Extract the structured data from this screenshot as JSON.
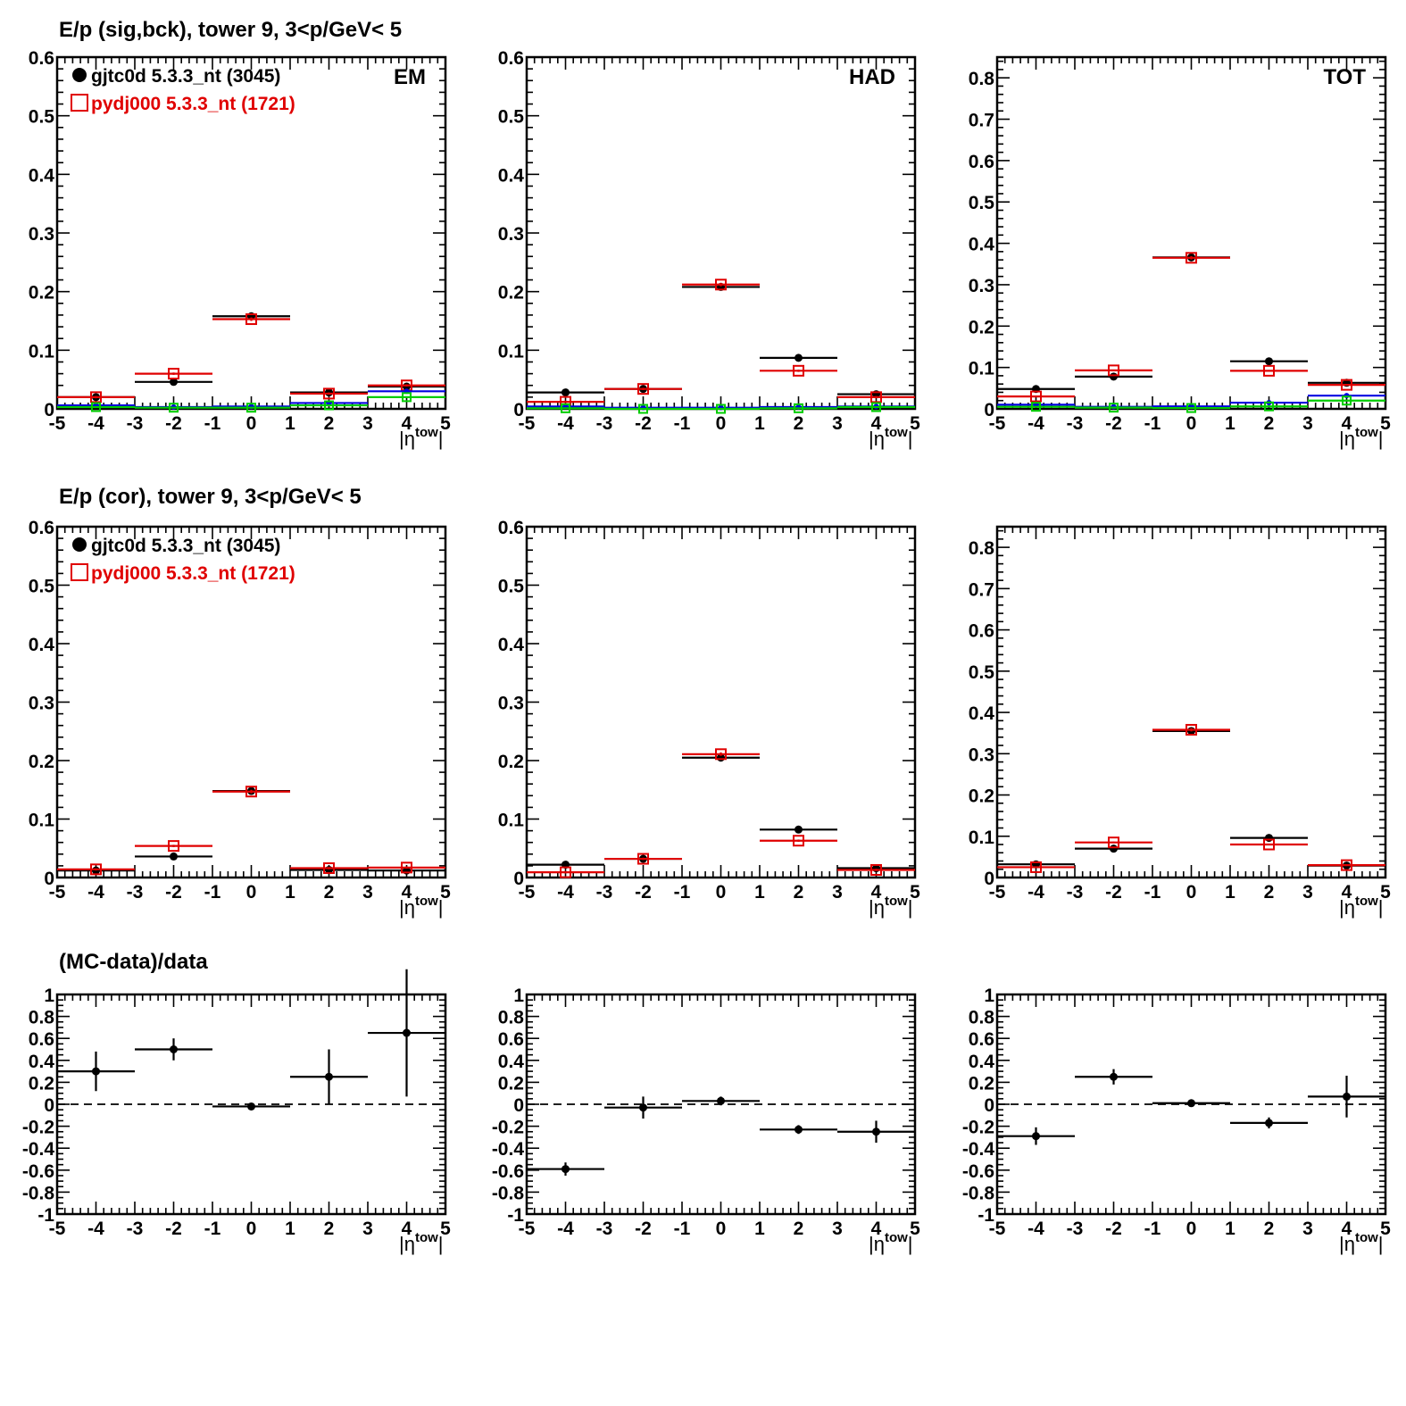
{
  "row_titles": [
    "E/p (sig,bck), tower 9,  3<p/GeV< 5",
    "E/p (cor), tower 9,  3<p/GeV< 5",
    "(MC-data)/data"
  ],
  "legend": {
    "data_label": "gjtc0d 5.3.3_nt (3045)",
    "mc_label": "pydj000 5.3.3_nt (1721)"
  },
  "colors": {
    "data": "#000000",
    "mc": "#e00000",
    "blue": "#0000e0",
    "green": "#00cc00"
  },
  "chart_data": [
    {
      "id": "sigbck-em",
      "type": "scatter",
      "label": "EM",
      "xlabel": "|η^tow|",
      "xlim": [
        -5,
        5
      ],
      "ylim": [
        0,
        0.6
      ],
      "xticks": [
        -5,
        -4,
        -3,
        -2,
        -1,
        0,
        1,
        2,
        3,
        4,
        5
      ],
      "yticks": [
        0,
        0.1,
        0.2,
        0.3,
        0.4,
        0.5,
        0.6
      ],
      "x": [
        -4,
        -2,
        0,
        2,
        4
      ],
      "series": [
        {
          "name": "gjtc0d 5.3.3_nt (3045)",
          "style": "data",
          "values": [
            0.02,
            0.046,
            0.158,
            0.028,
            0.038
          ],
          "errors": [
            0.002,
            0.002,
            0.003,
            0.002,
            0.002
          ]
        },
        {
          "name": "pydj000 5.3.3_nt (1721)",
          "style": "mc",
          "values": [
            0.02,
            0.06,
            0.153,
            0.026,
            0.04
          ],
          "errors": [
            0.002,
            0.002,
            0.003,
            0.002,
            0.002
          ]
        },
        {
          "style": "blue",
          "values": [
            0.006,
            0.003,
            0.004,
            0.01,
            0.03
          ]
        },
        {
          "style": "green",
          "values": [
            0.003,
            0.002,
            0.002,
            0.006,
            0.02
          ]
        }
      ]
    },
    {
      "id": "sigbck-had",
      "type": "scatter",
      "label": "HAD",
      "xlabel": "|η^tow|",
      "xlim": [
        -5,
        5
      ],
      "ylim": [
        0,
        0.6
      ],
      "xticks": [
        -5,
        -4,
        -3,
        -2,
        -1,
        0,
        1,
        2,
        3,
        4,
        5
      ],
      "yticks": [
        0,
        0.1,
        0.2,
        0.3,
        0.4,
        0.5,
        0.6
      ],
      "x": [
        -4,
        -2,
        0,
        2,
        4
      ],
      "series": [
        {
          "style": "data",
          "values": [
            0.028,
            0.034,
            0.208,
            0.087,
            0.025
          ],
          "errors": [
            0.002,
            0.002,
            0.003,
            0.002,
            0.002
          ]
        },
        {
          "style": "mc",
          "values": [
            0.012,
            0.034,
            0.212,
            0.065,
            0.02
          ],
          "errors": [
            0.002,
            0.002,
            0.003,
            0.002,
            0.002
          ]
        },
        {
          "style": "blue",
          "values": [
            0.004,
            0.002,
            0.002,
            0.003,
            0.004
          ]
        },
        {
          "style": "green",
          "values": [
            0.001,
            0.0,
            0.0,
            0.001,
            0.003
          ]
        }
      ]
    },
    {
      "id": "sigbck-tot",
      "type": "scatter",
      "label": "TOT",
      "xlabel": "|η^tow|",
      "xlim": [
        -5,
        5
      ],
      "ylim": [
        0,
        0.85
      ],
      "xticks": [
        -5,
        -4,
        -3,
        -2,
        -1,
        0,
        1,
        2,
        3,
        4,
        5
      ],
      "yticks": [
        0,
        0.1,
        0.2,
        0.3,
        0.4,
        0.5,
        0.6,
        0.7,
        0.8
      ],
      "x": [
        -4,
        -2,
        0,
        2,
        4
      ],
      "series": [
        {
          "style": "data",
          "values": [
            0.048,
            0.078,
            0.366,
            0.115,
            0.063
          ],
          "errors": [
            0.002,
            0.002,
            0.004,
            0.002,
            0.002
          ]
        },
        {
          "style": "mc",
          "values": [
            0.03,
            0.093,
            0.365,
            0.092,
            0.058
          ],
          "errors": [
            0.002,
            0.002,
            0.004,
            0.002,
            0.002
          ]
        },
        {
          "style": "blue",
          "values": [
            0.01,
            0.005,
            0.006,
            0.015,
            0.032
          ]
        },
        {
          "style": "green",
          "values": [
            0.005,
            0.003,
            0.002,
            0.006,
            0.02
          ]
        }
      ]
    },
    {
      "id": "cor-em",
      "type": "scatter",
      "xlabel": "|η^tow|",
      "xlim": [
        -5,
        5
      ],
      "ylim": [
        0,
        0.6
      ],
      "xticks": [
        -5,
        -4,
        -3,
        -2,
        -1,
        0,
        1,
        2,
        3,
        4,
        5
      ],
      "yticks": [
        0,
        0.1,
        0.2,
        0.3,
        0.4,
        0.5,
        0.6
      ],
      "x": [
        -4,
        -2,
        0,
        2,
        4
      ],
      "series": [
        {
          "name": "gjtc0d 5.3.3_nt (3045)",
          "style": "data",
          "values": [
            0.012,
            0.036,
            0.148,
            0.013,
            0.012
          ],
          "errors": [
            0.002,
            0.002,
            0.003,
            0.002,
            0.002
          ]
        },
        {
          "name": "pydj000 5.3.3_nt (1721)",
          "style": "mc",
          "values": [
            0.014,
            0.054,
            0.147,
            0.016,
            0.017
          ],
          "errors": [
            0.002,
            0.002,
            0.003,
            0.002,
            0.002
          ]
        }
      ]
    },
    {
      "id": "cor-had",
      "type": "scatter",
      "xlabel": "|η^tow|",
      "xlim": [
        -5,
        5
      ],
      "ylim": [
        0,
        0.6
      ],
      "xticks": [
        -5,
        -4,
        -3,
        -2,
        -1,
        0,
        1,
        2,
        3,
        4,
        5
      ],
      "yticks": [
        0,
        0.1,
        0.2,
        0.3,
        0.4,
        0.5,
        0.6
      ],
      "x": [
        -4,
        -2,
        0,
        2,
        4
      ],
      "series": [
        {
          "style": "data",
          "values": [
            0.022,
            0.032,
            0.205,
            0.082,
            0.016
          ],
          "errors": [
            0.002,
            0.002,
            0.003,
            0.002,
            0.002
          ]
        },
        {
          "style": "mc",
          "values": [
            0.009,
            0.032,
            0.211,
            0.063,
            0.013
          ],
          "errors": [
            0.002,
            0.002,
            0.003,
            0.002,
            0.002
          ]
        }
      ]
    },
    {
      "id": "cor-tot",
      "type": "scatter",
      "xlabel": "|η^tow|",
      "xlim": [
        -5,
        5
      ],
      "ylim": [
        0,
        0.85
      ],
      "xticks": [
        -5,
        -4,
        -3,
        -2,
        -1,
        0,
        1,
        2,
        3,
        4,
        5
      ],
      "yticks": [
        0,
        0.1,
        0.2,
        0.3,
        0.4,
        0.5,
        0.6,
        0.7,
        0.8
      ],
      "x": [
        -4,
        -2,
        0,
        2,
        4
      ],
      "series": [
        {
          "style": "data",
          "values": [
            0.032,
            0.07,
            0.355,
            0.096,
            0.029
          ],
          "errors": [
            0.002,
            0.002,
            0.004,
            0.002,
            0.002
          ]
        },
        {
          "style": "mc",
          "values": [
            0.025,
            0.085,
            0.358,
            0.08,
            0.03
          ],
          "errors": [
            0.002,
            0.002,
            0.004,
            0.002,
            0.002
          ]
        }
      ]
    },
    {
      "id": "ratio-em",
      "type": "scatter",
      "xlabel": "|η^tow|",
      "xlim": [
        -5,
        5
      ],
      "ylim": [
        -1,
        1
      ],
      "xticks": [
        -5,
        -4,
        -3,
        -2,
        -1,
        0,
        1,
        2,
        3,
        4,
        5
      ],
      "yticks": [
        -1,
        -0.8,
        -0.6,
        -0.4,
        -0.2,
        0,
        0.2,
        0.4,
        0.6,
        0.8,
        1
      ],
      "zero_line": true,
      "x": [
        -4,
        -2,
        0,
        2,
        4
      ],
      "series": [
        {
          "style": "data",
          "values": [
            0.3,
            0.5,
            -0.02,
            0.25,
            0.65
          ],
          "errors": [
            0.18,
            0.1,
            0.03,
            0.25,
            0.58
          ]
        }
      ]
    },
    {
      "id": "ratio-had",
      "type": "scatter",
      "xlabel": "|η^tow|",
      "xlim": [
        -5,
        5
      ],
      "ylim": [
        -1,
        1
      ],
      "xticks": [
        -5,
        -4,
        -3,
        -2,
        -1,
        0,
        1,
        2,
        3,
        4,
        5
      ],
      "yticks": [
        -1,
        -0.8,
        -0.6,
        -0.4,
        -0.2,
        0,
        0.2,
        0.4,
        0.6,
        0.8,
        1
      ],
      "zero_line": true,
      "x": [
        -4,
        -2,
        0,
        2,
        4
      ],
      "series": [
        {
          "style": "data",
          "values": [
            -0.59,
            -0.03,
            0.03,
            -0.23,
            -0.25
          ],
          "errors": [
            0.06,
            0.1,
            0.04,
            0.04,
            0.1
          ]
        }
      ]
    },
    {
      "id": "ratio-tot",
      "type": "scatter",
      "xlabel": "|η^tow|",
      "xlim": [
        -5,
        5
      ],
      "ylim": [
        -1,
        1
      ],
      "xticks": [
        -5,
        -4,
        -3,
        -2,
        -1,
        0,
        1,
        2,
        3,
        4,
        5
      ],
      "yticks": [
        -1,
        -0.8,
        -0.6,
        -0.4,
        -0.2,
        0,
        0.2,
        0.4,
        0.6,
        0.8,
        1
      ],
      "zero_line": true,
      "x": [
        -4,
        -2,
        0,
        2,
        4
      ],
      "series": [
        {
          "style": "data",
          "values": [
            -0.29,
            0.25,
            0.01,
            -0.17,
            0.07
          ],
          "errors": [
            0.08,
            0.07,
            0.02,
            0.05,
            0.19
          ]
        }
      ]
    }
  ]
}
